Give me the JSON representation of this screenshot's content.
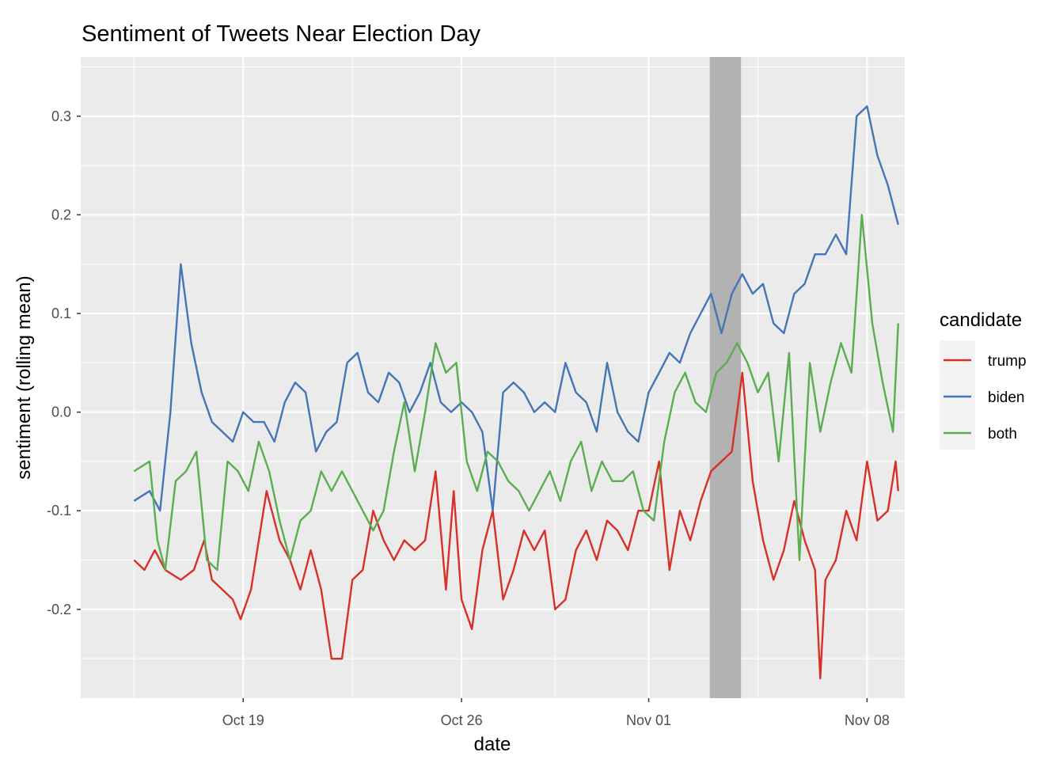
{
  "chart_data": {
    "type": "line",
    "title": "Sentiment of Tweets Near Election Day",
    "xlabel": "date",
    "ylabel": "sentiment (rolling mean)",
    "x_ticks": [
      "Oct 19",
      "Oct 26",
      "Nov 01",
      "Nov 08"
    ],
    "y_ticks": [
      "-0.2",
      "-0.1",
      "0.0",
      "0.1",
      "0.2",
      "0.3"
    ],
    "y_tick_values": [
      -0.2,
      -0.1,
      0.0,
      0.1,
      0.2,
      0.3
    ],
    "ylim": [
      -0.29,
      0.36
    ],
    "xlim": [
      "2020-10-13T19:00",
      "2020-11-09T05:00"
    ],
    "highlight_band": {
      "start": "2020-11-02T23:00",
      "end": "2020-11-03T23:00",
      "color": "#b2b2b2"
    },
    "grid": true,
    "legend_position": "right",
    "legend_title": "candidate",
    "series": [
      {
        "name": "trump",
        "color": "#d73027",
        "points": [
          [
            "2020-10-15T12:00",
            -0.15
          ],
          [
            "2020-10-15T20:00",
            -0.16
          ],
          [
            "2020-10-16T04:00",
            -0.14
          ],
          [
            "2020-10-16T12:00",
            -0.16
          ],
          [
            "2020-10-17T00:00",
            -0.17
          ],
          [
            "2020-10-17T10:00",
            -0.16
          ],
          [
            "2020-10-17T18:00",
            -0.13
          ],
          [
            "2020-10-18T00:00",
            -0.17
          ],
          [
            "2020-10-18T08:00",
            -0.18
          ],
          [
            "2020-10-18T16:00",
            -0.19
          ],
          [
            "2020-10-18T22:00",
            -0.21
          ],
          [
            "2020-10-19T06:00",
            -0.18
          ],
          [
            "2020-10-19T18:00",
            -0.08
          ],
          [
            "2020-10-20T04:00",
            -0.13
          ],
          [
            "2020-10-20T12:00",
            -0.15
          ],
          [
            "2020-10-20T20:00",
            -0.18
          ],
          [
            "2020-10-21T04:00",
            -0.14
          ],
          [
            "2020-10-21T12:00",
            -0.18
          ],
          [
            "2020-10-21T20:00",
            -0.25
          ],
          [
            "2020-10-22T04:00",
            -0.25
          ],
          [
            "2020-10-22T12:00",
            -0.17
          ],
          [
            "2020-10-22T20:00",
            -0.16
          ],
          [
            "2020-10-23T04:00",
            -0.1
          ],
          [
            "2020-10-23T12:00",
            -0.13
          ],
          [
            "2020-10-23T20:00",
            -0.15
          ],
          [
            "2020-10-24T04:00",
            -0.13
          ],
          [
            "2020-10-24T12:00",
            -0.14
          ],
          [
            "2020-10-24T20:00",
            -0.13
          ],
          [
            "2020-10-25T04:00",
            -0.06
          ],
          [
            "2020-10-25T12:00",
            -0.18
          ],
          [
            "2020-10-25T18:00",
            -0.08
          ],
          [
            "2020-10-26T00:00",
            -0.19
          ],
          [
            "2020-10-26T08:00",
            -0.22
          ],
          [
            "2020-10-26T16:00",
            -0.14
          ],
          [
            "2020-10-27T00:00",
            -0.1
          ],
          [
            "2020-10-27T08:00",
            -0.19
          ],
          [
            "2020-10-27T16:00",
            -0.16
          ],
          [
            "2020-10-28T00:00",
            -0.12
          ],
          [
            "2020-10-28T08:00",
            -0.14
          ],
          [
            "2020-10-28T16:00",
            -0.12
          ],
          [
            "2020-10-29T00:00",
            -0.2
          ],
          [
            "2020-10-29T08:00",
            -0.19
          ],
          [
            "2020-10-29T16:00",
            -0.14
          ],
          [
            "2020-10-30T00:00",
            -0.12
          ],
          [
            "2020-10-30T08:00",
            -0.15
          ],
          [
            "2020-10-30T16:00",
            -0.11
          ],
          [
            "2020-10-31T00:00",
            -0.12
          ],
          [
            "2020-10-31T08:00",
            -0.14
          ],
          [
            "2020-10-31T16:00",
            -0.1
          ],
          [
            "2020-11-01T00:00",
            -0.1
          ],
          [
            "2020-11-01T08:00",
            -0.05
          ],
          [
            "2020-11-01T16:00",
            -0.16
          ],
          [
            "2020-11-02T00:00",
            -0.1
          ],
          [
            "2020-11-02T08:00",
            -0.13
          ],
          [
            "2020-11-02T16:00",
            -0.09
          ],
          [
            "2020-11-03T00:00",
            -0.06
          ],
          [
            "2020-11-03T08:00",
            -0.05
          ],
          [
            "2020-11-03T16:00",
            -0.04
          ],
          [
            "2020-11-04T00:00",
            0.04
          ],
          [
            "2020-11-04T08:00",
            -0.07
          ],
          [
            "2020-11-04T16:00",
            -0.13
          ],
          [
            "2020-11-05T00:00",
            -0.17
          ],
          [
            "2020-11-05T08:00",
            -0.14
          ],
          [
            "2020-11-05T16:00",
            -0.09
          ],
          [
            "2020-11-06T00:00",
            -0.13
          ],
          [
            "2020-11-06T08:00",
            -0.16
          ],
          [
            "2020-11-06T12:00",
            -0.27
          ],
          [
            "2020-11-06T16:00",
            -0.17
          ],
          [
            "2020-11-07T00:00",
            -0.15
          ],
          [
            "2020-11-07T08:00",
            -0.1
          ],
          [
            "2020-11-07T16:00",
            -0.13
          ],
          [
            "2020-11-08T00:00",
            -0.05
          ],
          [
            "2020-11-08T08:00",
            -0.11
          ],
          [
            "2020-11-08T16:00",
            -0.1
          ],
          [
            "2020-11-08T22:00",
            -0.05
          ],
          [
            "2020-11-09T00:00",
            -0.08
          ]
        ]
      },
      {
        "name": "biden",
        "color": "#4575b4",
        "points": [
          [
            "2020-10-15T12:00",
            -0.09
          ],
          [
            "2020-10-16T00:00",
            -0.08
          ],
          [
            "2020-10-16T08:00",
            -0.1
          ],
          [
            "2020-10-16T16:00",
            0.0
          ],
          [
            "2020-10-17T00:00",
            0.15
          ],
          [
            "2020-10-17T08:00",
            0.07
          ],
          [
            "2020-10-17T16:00",
            0.02
          ],
          [
            "2020-10-18T00:00",
            -0.01
          ],
          [
            "2020-10-18T08:00",
            -0.02
          ],
          [
            "2020-10-18T16:00",
            -0.03
          ],
          [
            "2020-10-19T00:00",
            0.0
          ],
          [
            "2020-10-19T08:00",
            -0.01
          ],
          [
            "2020-10-19T16:00",
            -0.01
          ],
          [
            "2020-10-20T00:00",
            -0.03
          ],
          [
            "2020-10-20T08:00",
            0.01
          ],
          [
            "2020-10-20T16:00",
            0.03
          ],
          [
            "2020-10-21T00:00",
            0.02
          ],
          [
            "2020-10-21T08:00",
            -0.04
          ],
          [
            "2020-10-21T16:00",
            -0.02
          ],
          [
            "2020-10-22T00:00",
            -0.01
          ],
          [
            "2020-10-22T08:00",
            0.05
          ],
          [
            "2020-10-22T16:00",
            0.06
          ],
          [
            "2020-10-23T00:00",
            0.02
          ],
          [
            "2020-10-23T08:00",
            0.01
          ],
          [
            "2020-10-23T16:00",
            0.04
          ],
          [
            "2020-10-24T00:00",
            0.03
          ],
          [
            "2020-10-24T08:00",
            0.0
          ],
          [
            "2020-10-24T16:00",
            0.02
          ],
          [
            "2020-10-25T00:00",
            0.05
          ],
          [
            "2020-10-25T08:00",
            0.01
          ],
          [
            "2020-10-25T16:00",
            0.0
          ],
          [
            "2020-10-26T00:00",
            0.01
          ],
          [
            "2020-10-26T08:00",
            0.0
          ],
          [
            "2020-10-26T16:00",
            -0.02
          ],
          [
            "2020-10-27T00:00",
            -0.1
          ],
          [
            "2020-10-27T08:00",
            0.02
          ],
          [
            "2020-10-27T16:00",
            0.03
          ],
          [
            "2020-10-28T00:00",
            0.02
          ],
          [
            "2020-10-28T08:00",
            0.0
          ],
          [
            "2020-10-28T16:00",
            0.01
          ],
          [
            "2020-10-29T00:00",
            0.0
          ],
          [
            "2020-10-29T08:00",
            0.05
          ],
          [
            "2020-10-29T16:00",
            0.02
          ],
          [
            "2020-10-30T00:00",
            0.01
          ],
          [
            "2020-10-30T08:00",
            -0.02
          ],
          [
            "2020-10-30T16:00",
            0.05
          ],
          [
            "2020-10-31T00:00",
            0.0
          ],
          [
            "2020-10-31T08:00",
            -0.02
          ],
          [
            "2020-10-31T16:00",
            -0.03
          ],
          [
            "2020-11-01T00:00",
            0.02
          ],
          [
            "2020-11-01T08:00",
            0.04
          ],
          [
            "2020-11-01T16:00",
            0.06
          ],
          [
            "2020-11-02T00:00",
            0.05
          ],
          [
            "2020-11-02T08:00",
            0.08
          ],
          [
            "2020-11-02T16:00",
            0.1
          ],
          [
            "2020-11-03T00:00",
            0.12
          ],
          [
            "2020-11-03T08:00",
            0.08
          ],
          [
            "2020-11-03T16:00",
            0.12
          ],
          [
            "2020-11-04T00:00",
            0.14
          ],
          [
            "2020-11-04T08:00",
            0.12
          ],
          [
            "2020-11-04T16:00",
            0.13
          ],
          [
            "2020-11-05T00:00",
            0.09
          ],
          [
            "2020-11-05T08:00",
            0.08
          ],
          [
            "2020-11-05T16:00",
            0.12
          ],
          [
            "2020-11-06T00:00",
            0.13
          ],
          [
            "2020-11-06T08:00",
            0.16
          ],
          [
            "2020-11-06T16:00",
            0.16
          ],
          [
            "2020-11-07T00:00",
            0.18
          ],
          [
            "2020-11-07T08:00",
            0.16
          ],
          [
            "2020-11-07T16:00",
            0.3
          ],
          [
            "2020-11-08T00:00",
            0.31
          ],
          [
            "2020-11-08T08:00",
            0.26
          ],
          [
            "2020-11-08T16:00",
            0.23
          ],
          [
            "2020-11-09T00:00",
            0.19
          ]
        ]
      },
      {
        "name": "both",
        "color": "#5aae4f",
        "points": [
          [
            "2020-10-15T12:00",
            -0.06
          ],
          [
            "2020-10-16T00:00",
            -0.05
          ],
          [
            "2020-10-16T06:00",
            -0.13
          ],
          [
            "2020-10-16T12:00",
            -0.16
          ],
          [
            "2020-10-16T20:00",
            -0.07
          ],
          [
            "2020-10-17T04:00",
            -0.06
          ],
          [
            "2020-10-17T12:00",
            -0.04
          ],
          [
            "2020-10-17T20:00",
            -0.15
          ],
          [
            "2020-10-18T04:00",
            -0.16
          ],
          [
            "2020-10-18T12:00",
            -0.05
          ],
          [
            "2020-10-18T20:00",
            -0.06
          ],
          [
            "2020-10-19T04:00",
            -0.08
          ],
          [
            "2020-10-19T12:00",
            -0.03
          ],
          [
            "2020-10-19T20:00",
            -0.06
          ],
          [
            "2020-10-20T04:00",
            -0.11
          ],
          [
            "2020-10-20T12:00",
            -0.15
          ],
          [
            "2020-10-20T20:00",
            -0.11
          ],
          [
            "2020-10-21T04:00",
            -0.1
          ],
          [
            "2020-10-21T12:00",
            -0.06
          ],
          [
            "2020-10-21T20:00",
            -0.08
          ],
          [
            "2020-10-22T04:00",
            -0.06
          ],
          [
            "2020-10-22T12:00",
            -0.08
          ],
          [
            "2020-10-22T20:00",
            -0.1
          ],
          [
            "2020-10-23T04:00",
            -0.12
          ],
          [
            "2020-10-23T12:00",
            -0.1
          ],
          [
            "2020-10-23T20:00",
            -0.04
          ],
          [
            "2020-10-24T04:00",
            0.01
          ],
          [
            "2020-10-24T12:00",
            -0.06
          ],
          [
            "2020-10-24T20:00",
            0.0
          ],
          [
            "2020-10-25T04:00",
            0.07
          ],
          [
            "2020-10-25T12:00",
            0.04
          ],
          [
            "2020-10-25T20:00",
            0.05
          ],
          [
            "2020-10-26T04:00",
            -0.05
          ],
          [
            "2020-10-26T12:00",
            -0.08
          ],
          [
            "2020-10-26T20:00",
            -0.04
          ],
          [
            "2020-10-27T04:00",
            -0.05
          ],
          [
            "2020-10-27T12:00",
            -0.07
          ],
          [
            "2020-10-27T20:00",
            -0.08
          ],
          [
            "2020-10-28T04:00",
            -0.1
          ],
          [
            "2020-10-28T12:00",
            -0.08
          ],
          [
            "2020-10-28T20:00",
            -0.06
          ],
          [
            "2020-10-29T04:00",
            -0.09
          ],
          [
            "2020-10-29T12:00",
            -0.05
          ],
          [
            "2020-10-29T20:00",
            -0.03
          ],
          [
            "2020-10-30T04:00",
            -0.08
          ],
          [
            "2020-10-30T12:00",
            -0.05
          ],
          [
            "2020-10-30T20:00",
            -0.07
          ],
          [
            "2020-10-31T04:00",
            -0.07
          ],
          [
            "2020-10-31T12:00",
            -0.06
          ],
          [
            "2020-10-31T20:00",
            -0.1
          ],
          [
            "2020-11-01T04:00",
            -0.11
          ],
          [
            "2020-11-01T12:00",
            -0.03
          ],
          [
            "2020-11-01T20:00",
            0.02
          ],
          [
            "2020-11-02T04:00",
            0.04
          ],
          [
            "2020-11-02T12:00",
            0.01
          ],
          [
            "2020-11-02T20:00",
            0.0
          ],
          [
            "2020-11-03T04:00",
            0.04
          ],
          [
            "2020-11-03T12:00",
            0.05
          ],
          [
            "2020-11-03T20:00",
            0.07
          ],
          [
            "2020-11-04T04:00",
            0.05
          ],
          [
            "2020-11-04T12:00",
            0.02
          ],
          [
            "2020-11-04T20:00",
            0.04
          ],
          [
            "2020-11-05T04:00",
            -0.05
          ],
          [
            "2020-11-05T12:00",
            0.06
          ],
          [
            "2020-11-05T20:00",
            -0.15
          ],
          [
            "2020-11-06T04:00",
            0.05
          ],
          [
            "2020-11-06T12:00",
            -0.02
          ],
          [
            "2020-11-06T20:00",
            0.03
          ],
          [
            "2020-11-07T04:00",
            0.07
          ],
          [
            "2020-11-07T12:00",
            0.04
          ],
          [
            "2020-11-07T20:00",
            0.2
          ],
          [
            "2020-11-08T04:00",
            0.09
          ],
          [
            "2020-11-08T12:00",
            0.03
          ],
          [
            "2020-11-08T20:00",
            -0.02
          ],
          [
            "2020-11-09T00:00",
            0.09
          ]
        ]
      }
    ]
  }
}
